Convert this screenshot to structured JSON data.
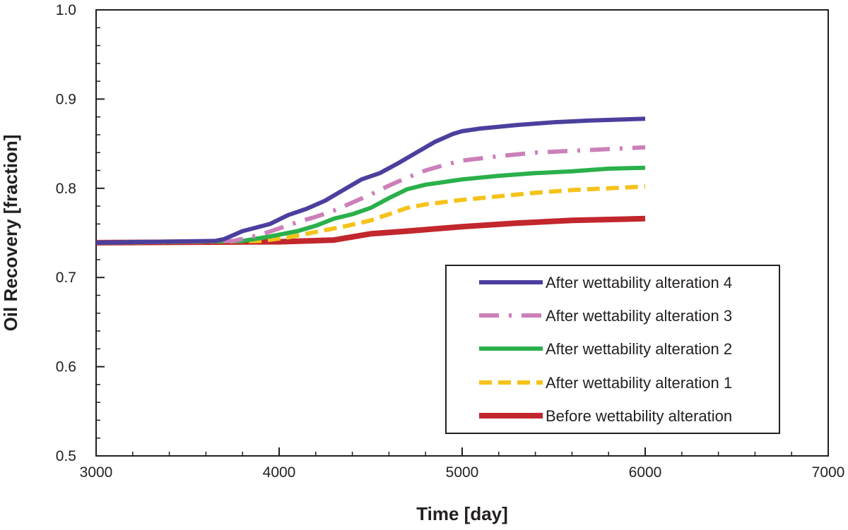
{
  "chart_data": {
    "type": "line",
    "title": "",
    "xlabel": "Time [day]",
    "ylabel": "Oil Recovery [fraction]",
    "xlim": [
      3000,
      7000
    ],
    "ylim": [
      0.5,
      1.0
    ],
    "x_ticks": [
      3000,
      4000,
      5000,
      6000,
      7000
    ],
    "x_tick_labels": [
      "3000",
      "4000",
      "5000",
      "6000",
      "7000"
    ],
    "y_ticks": [
      0.5,
      0.6,
      0.7,
      0.8,
      0.9,
      1.0
    ],
    "y_tick_labels": [
      "0.5",
      "0.6",
      "0.7",
      "0.8",
      "0.9",
      "1.0"
    ],
    "grid": false,
    "legend_position": "bottom-right",
    "series": [
      {
        "name": "After wettability alteration 4",
        "color": "#4b3f9e",
        "style": "solid",
        "x": [
          3000,
          3650,
          3700,
          3800,
          3950,
          4050,
          4150,
          4250,
          4350,
          4450,
          4550,
          4650,
          4750,
          4850,
          4950,
          5000,
          5100,
          5300,
          5500,
          5700,
          6000
        ],
        "y": [
          0.739,
          0.741,
          0.743,
          0.752,
          0.76,
          0.77,
          0.777,
          0.786,
          0.798,
          0.81,
          0.817,
          0.828,
          0.84,
          0.852,
          0.861,
          0.864,
          0.867,
          0.871,
          0.874,
          0.876,
          0.878
        ]
      },
      {
        "name": "After wettability alteration 3",
        "color": "#cc7fb9",
        "style": "dashdot",
        "x": [
          3000,
          3750,
          3900,
          4000,
          4100,
          4200,
          4300,
          4400,
          4500,
          4600,
          4700,
          4800,
          4900,
          5000,
          5200,
          5400,
          5600,
          5800,
          6000
        ],
        "y": [
          0.739,
          0.741,
          0.748,
          0.755,
          0.762,
          0.768,
          0.775,
          0.784,
          0.793,
          0.803,
          0.812,
          0.82,
          0.826,
          0.831,
          0.836,
          0.84,
          0.842,
          0.844,
          0.846
        ]
      },
      {
        "name": "After wettability alteration 2",
        "color": "#2ab04a",
        "style": "solid",
        "x": [
          3000,
          3800,
          3950,
          4100,
          4200,
          4300,
          4400,
          4500,
          4600,
          4700,
          4800,
          5000,
          5200,
          5400,
          5600,
          5800,
          6000
        ],
        "y": [
          0.739,
          0.741,
          0.746,
          0.752,
          0.758,
          0.766,
          0.771,
          0.778,
          0.789,
          0.799,
          0.804,
          0.81,
          0.814,
          0.817,
          0.819,
          0.822,
          0.823
        ]
      },
      {
        "name": "After wettability alteration 1",
        "color": "#f5c21b",
        "style": "dashed",
        "x": [
          3000,
          3900,
          4050,
          4200,
          4350,
          4500,
          4600,
          4700,
          4800,
          5000,
          5200,
          5400,
          5600,
          5800,
          6000
        ],
        "y": [
          0.739,
          0.741,
          0.745,
          0.751,
          0.757,
          0.764,
          0.771,
          0.778,
          0.782,
          0.787,
          0.791,
          0.795,
          0.798,
          0.8,
          0.802
        ]
      },
      {
        "name": "Before wettability alteration",
        "color": "#c1272d",
        "style": "solid-thick",
        "x": [
          3000,
          4000,
          4300,
          4500,
          4700,
          5000,
          5300,
          5600,
          6000
        ],
        "y": [
          0.739,
          0.74,
          0.742,
          0.749,
          0.752,
          0.757,
          0.761,
          0.764,
          0.766
        ]
      }
    ]
  }
}
